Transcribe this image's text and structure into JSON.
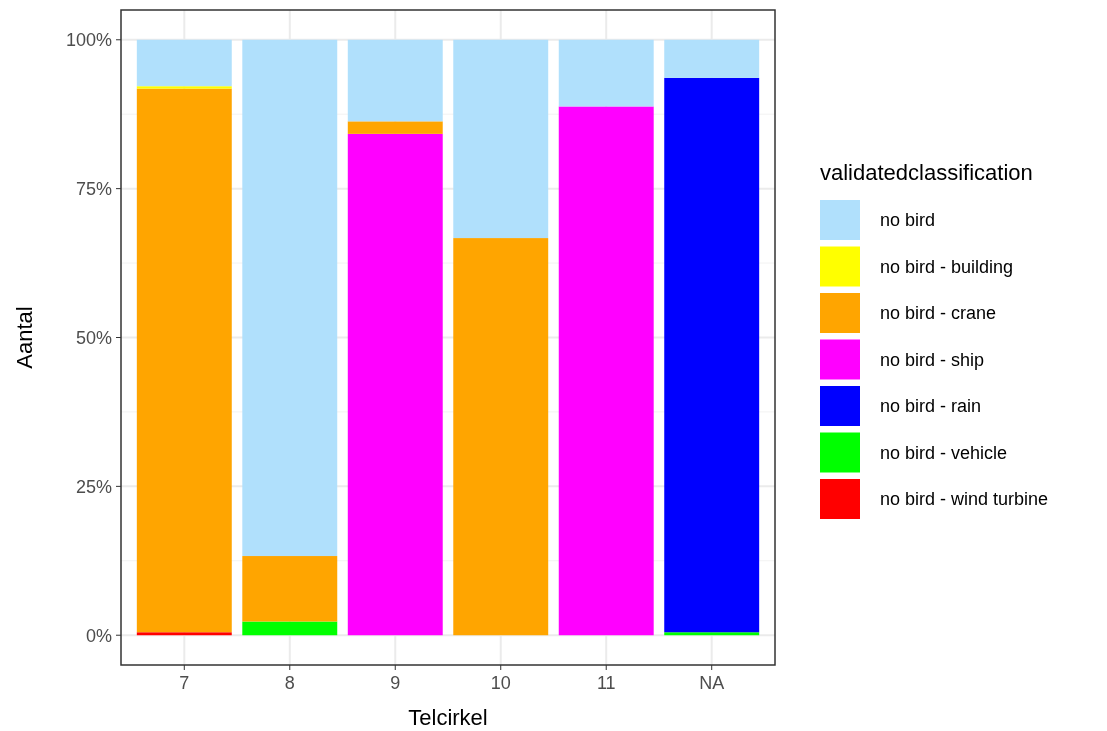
{
  "chart_data": {
    "type": "bar",
    "stacked": true,
    "xlabel": "Telcirkel",
    "ylabel": "Aantal",
    "legend_title": "validatedclassification",
    "legend": "right",
    "grid": true,
    "categories": [
      "7",
      "8",
      "9",
      "10",
      "11",
      "NA"
    ],
    "ylim": [
      -5,
      105
    ],
    "yticks": [
      {
        "value": 0,
        "label": "0%"
      },
      {
        "value": 25,
        "label": "25%"
      },
      {
        "value": 50,
        "label": "50%"
      },
      {
        "value": 75,
        "label": "75%"
      },
      {
        "value": 100,
        "label": "100%"
      }
    ],
    "series": [
      {
        "name": "no bird - wind turbine",
        "color": "#ff0000",
        "values": [
          0.5,
          0,
          0,
          0,
          0,
          0
        ]
      },
      {
        "name": "no bird - vehicle",
        "color": "#00ff00",
        "values": [
          0,
          2.3,
          0,
          0,
          0,
          0.5
        ]
      },
      {
        "name": "no bird - rain",
        "color": "#0000ff",
        "values": [
          0,
          0,
          0,
          0,
          0,
          93.1
        ]
      },
      {
        "name": "no bird - ship",
        "color": "#ff00ff",
        "values": [
          0,
          0,
          84.2,
          0,
          88.8,
          0
        ]
      },
      {
        "name": "no bird - crane",
        "color": "#ffa500",
        "values": [
          91.3,
          11.0,
          2.1,
          66.7,
          0,
          0
        ]
      },
      {
        "name": "no bird - building",
        "color": "#ffff00",
        "values": [
          0.4,
          0,
          0,
          0,
          0,
          0
        ]
      },
      {
        "name": "no bird",
        "color": "#b0e0fc",
        "values": [
          7.8,
          86.7,
          13.7,
          33.3,
          11.2,
          6.4
        ]
      }
    ]
  }
}
